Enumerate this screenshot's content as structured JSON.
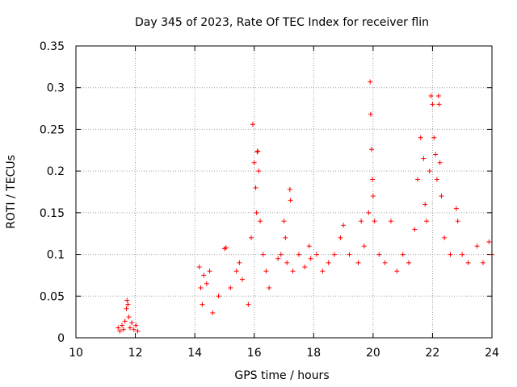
{
  "chart_data": {
    "type": "scatter",
    "title": "Day 345 of 2023, Rate Of TEC Index for receiver flin",
    "xlabel": "GPS time / hours",
    "ylabel": "ROTI / TECUs",
    "xlim": [
      10,
      24
    ],
    "ylim": [
      0,
      0.35
    ],
    "xticks": [
      10,
      12,
      14,
      16,
      18,
      20,
      22,
      24
    ],
    "xtick_labels": [
      "10",
      "12",
      "14",
      "16",
      "18",
      "20",
      "22",
      "24"
    ],
    "yticks": [
      0,
      0.05,
      0.1,
      0.15,
      0.2,
      0.25,
      0.3,
      0.35
    ],
    "ytick_labels": [
      "0",
      "0.05",
      "0.1",
      "0.15",
      "0.2",
      "0.25",
      "0.3",
      "0.35"
    ],
    "grid": true,
    "marker": "+",
    "color": "#ff0000",
    "points": [
      [
        11.42,
        0.012
      ],
      [
        11.48,
        0.008
      ],
      [
        11.55,
        0.015
      ],
      [
        11.6,
        0.01
      ],
      [
        11.65,
        0.02
      ],
      [
        11.7,
        0.035
      ],
      [
        11.72,
        0.045
      ],
      [
        11.75,
        0.04
      ],
      [
        11.78,
        0.025
      ],
      [
        11.82,
        0.012
      ],
      [
        11.88,
        0.018
      ],
      [
        11.95,
        0.01
      ],
      [
        12.02,
        0.015
      ],
      [
        12.08,
        0.008
      ],
      [
        14.15,
        0.085
      ],
      [
        14.2,
        0.06
      ],
      [
        14.25,
        0.04
      ],
      [
        14.3,
        0.075
      ],
      [
        14.4,
        0.065
      ],
      [
        14.5,
        0.08
      ],
      [
        14.6,
        0.03
      ],
      [
        14.8,
        0.05
      ],
      [
        15.0,
        0.107
      ],
      [
        15.05,
        0.108
      ],
      [
        15.2,
        0.06
      ],
      [
        15.4,
        0.08
      ],
      [
        15.5,
        0.09
      ],
      [
        15.6,
        0.07
      ],
      [
        15.8,
        0.04
      ],
      [
        15.9,
        0.12
      ],
      [
        15.95,
        0.256
      ],
      [
        16.0,
        0.21
      ],
      [
        16.05,
        0.18
      ],
      [
        16.08,
        0.15
      ],
      [
        16.1,
        0.223
      ],
      [
        16.12,
        0.224
      ],
      [
        16.15,
        0.2
      ],
      [
        16.2,
        0.14
      ],
      [
        16.3,
        0.1
      ],
      [
        16.4,
        0.08
      ],
      [
        16.5,
        0.06
      ],
      [
        16.8,
        0.095
      ],
      [
        16.9,
        0.1
      ],
      [
        17.0,
        0.14
      ],
      [
        17.05,
        0.12
      ],
      [
        17.1,
        0.09
      ],
      [
        17.2,
        0.178
      ],
      [
        17.22,
        0.165
      ],
      [
        17.3,
        0.08
      ],
      [
        17.5,
        0.1
      ],
      [
        17.7,
        0.085
      ],
      [
        17.85,
        0.11
      ],
      [
        17.9,
        0.095
      ],
      [
        18.1,
        0.1
      ],
      [
        18.3,
        0.08
      ],
      [
        18.5,
        0.09
      ],
      [
        18.7,
        0.1
      ],
      [
        18.9,
        0.12
      ],
      [
        19.0,
        0.135
      ],
      [
        19.2,
        0.1
      ],
      [
        19.5,
        0.09
      ],
      [
        19.6,
        0.14
      ],
      [
        19.7,
        0.11
      ],
      [
        19.85,
        0.15
      ],
      [
        19.9,
        0.307
      ],
      [
        19.92,
        0.268
      ],
      [
        19.95,
        0.226
      ],
      [
        19.98,
        0.19
      ],
      [
        20.0,
        0.17
      ],
      [
        20.05,
        0.14
      ],
      [
        20.2,
        0.1
      ],
      [
        20.4,
        0.09
      ],
      [
        20.6,
        0.14
      ],
      [
        20.8,
        0.08
      ],
      [
        21.0,
        0.1
      ],
      [
        21.2,
        0.09
      ],
      [
        21.4,
        0.13
      ],
      [
        21.5,
        0.19
      ],
      [
        21.6,
        0.24
      ],
      [
        21.7,
        0.215
      ],
      [
        21.75,
        0.16
      ],
      [
        21.8,
        0.14
      ],
      [
        21.9,
        0.2
      ],
      [
        21.95,
        0.29
      ],
      [
        22.0,
        0.28
      ],
      [
        22.05,
        0.24
      ],
      [
        22.1,
        0.22
      ],
      [
        22.15,
        0.19
      ],
      [
        22.2,
        0.29
      ],
      [
        22.22,
        0.28
      ],
      [
        22.25,
        0.21
      ],
      [
        22.3,
        0.17
      ],
      [
        22.4,
        0.12
      ],
      [
        22.6,
        0.1
      ],
      [
        22.8,
        0.155
      ],
      [
        22.85,
        0.14
      ],
      [
        23.0,
        0.1
      ],
      [
        23.2,
        0.09
      ],
      [
        23.5,
        0.11
      ],
      [
        23.7,
        0.09
      ],
      [
        23.9,
        0.115
      ],
      [
        24.0,
        0.1
      ]
    ]
  }
}
